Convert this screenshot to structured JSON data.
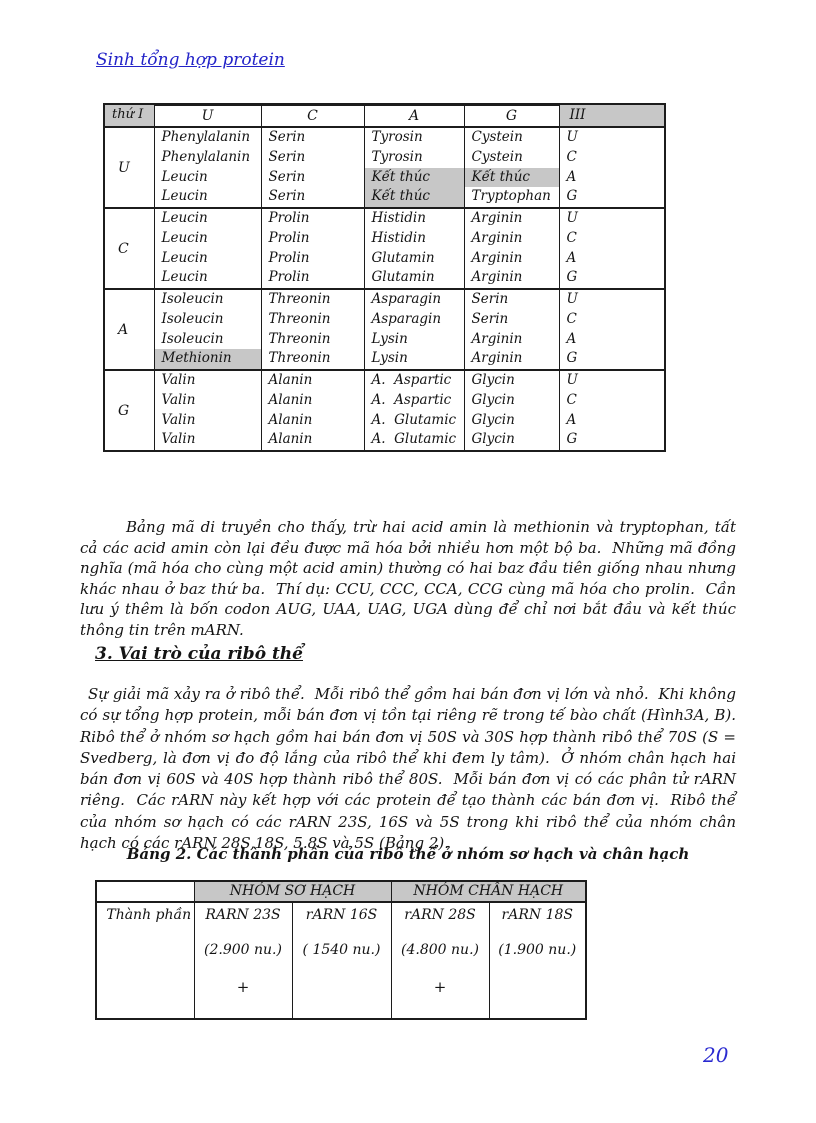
{
  "header": {
    "link": "Sinh tổng hợp protein"
  },
  "codon": {
    "corner_label": "thứ I",
    "third_position_label": "III",
    "second_base_headers": [
      "U",
      "C",
      "A",
      "G"
    ],
    "blocks": [
      {
        "base": "U",
        "cells": [
          [
            "Phenylalanin",
            "Phenylalanin",
            "Leucin",
            "Leucin"
          ],
          [
            "Serin",
            "Serin",
            "Serin",
            "Serin"
          ],
          [
            "Tyrosin",
            "Tyrosin",
            "Kết thúc",
            "Kết thúc"
          ],
          [
            "Cystein",
            "Cystein",
            "Kết thúc",
            "Tryptophan"
          ]
        ],
        "third": [
          "U",
          "C",
          "A",
          "G"
        ]
      },
      {
        "base": "C",
        "cells": [
          [
            "Leucin",
            "Leucin",
            "Leucin",
            "Leucin"
          ],
          [
            "Prolin",
            "Prolin",
            "Prolin",
            "Prolin"
          ],
          [
            "Histidin",
            "Histidin",
            "Glutamin",
            "Glutamin"
          ],
          [
            "Arginin",
            "Arginin",
            "Arginin",
            "Arginin"
          ]
        ],
        "third": [
          "U",
          "C",
          "A",
          "G"
        ]
      },
      {
        "base": "A",
        "cells": [
          [
            "Isoleucin",
            "Isoleucin",
            "Isoleucin",
            "Methionin"
          ],
          [
            "Threonin",
            "Threonin",
            "Threonin",
            "Threonin"
          ],
          [
            "Asparagin",
            "Asparagin",
            "Lysin",
            "Lysin"
          ],
          [
            "Serin",
            "Serin",
            "Arginin",
            "Arginin"
          ]
        ],
        "third": [
          "U",
          "C",
          "A",
          "G"
        ]
      },
      {
        "base": "G",
        "cells": [
          [
            "Valin",
            "Valin",
            "Valin",
            "Valin"
          ],
          [
            "Alanin",
            "Alanin",
            "Alanin",
            "Alanin"
          ],
          [
            "A.  Aspartic",
            "A.  Aspartic",
            "A.  Glutamic",
            "A.  Glutamic"
          ],
          [
            "Glycin",
            "Glycin",
            "Glycin",
            "Glycin"
          ]
        ],
        "third": [
          "U",
          "C",
          "A",
          "G"
        ]
      }
    ],
    "highlights": [
      {
        "block": 0,
        "col": 2,
        "line": 2
      },
      {
        "block": 0,
        "col": 2,
        "line": 3
      },
      {
        "block": 0,
        "col": 3,
        "line": 2
      },
      {
        "block": 2,
        "col": 0,
        "line": 3
      }
    ]
  },
  "paragraph1": "Bảng mã di truyền cho thấy, trừ hai acid amin là methionin và tryptophan, tất cả các acid amin còn lại đều được mã hóa bởi nhiều hơn một bộ ba.  Những mã đồng nghĩa (mã hóa cho cùng một acid amin) thường có hai baz đầu tiên giống nhau nhưng khác nhau ở baz thứ ba.  Thí dụ: CCU, CCC, CCA, CCG cùng mã hóa cho prolin.  Cần lưu ý thêm là bốn codon AUG, UAA, UAG, UGA dùng để chỉ nơi bắt đầu và kết thúc thông tin trên mARN.",
  "section_heading": "3.  Vai trò của ribô thể",
  "paragraph2": "Sự giải mã xảy ra ở ribô thể.  Mỗi ribô thể gồm hai bán đơn vị lớn và nhỏ.  Khi không có sự tổng hợp protein, mỗi bán đơn vị tồn tại riêng rẽ trong tế bào chất (Hình3A, B).  Ribô thể ở nhóm sơ hạch gồm hai bán đơn vị 50S và 30S hợp thành ribô thể 70S (S = Svedberg, là đơn vị đo độ lắng của ribô thể khi đem ly tâm).  Ở nhóm chân hạch hai bán đơn vị 60S và 40S hợp thành ribô thể 80S.  Mỗi bán đơn vị có các phân tử rARN riêng.  Các rARN này kết hợp với các protein để tạo thành các bán đơn vị.  Ribô thể của nhóm sơ hạch có các rARN 23S, 16S và 5S trong khi ribô thể của nhóm chân hạch có các rARN 28S,18S, 5.8S và 5S (Bảng 2).",
  "table2": {
    "caption": "Bảng 2.  Các thành phần của ribô thể ở nhóm sơ hạch và chân hạch",
    "group_headers": [
      "NHÓM SƠ HẠCH",
      "NHÓM CHÂN HẠCH"
    ],
    "row_label": "Thành phần",
    "columns": [
      {
        "name": "RARN 23S",
        "size": "(2.900 nu.)",
        "plus": "+"
      },
      {
        "name": "rARN 16S",
        "size": "( 1540 nu.)",
        "plus": ""
      },
      {
        "name": "rARN 28S",
        "size": "(4.800 nu.)",
        "plus": "+"
      },
      {
        "name": "rARN 18S",
        "size": "(1.900 nu.)",
        "plus": ""
      }
    ]
  },
  "page_number": "20",
  "colors": {
    "link": "#2323c8",
    "page_number": "#2a2ad0",
    "shade": "#c7c7c7"
  }
}
